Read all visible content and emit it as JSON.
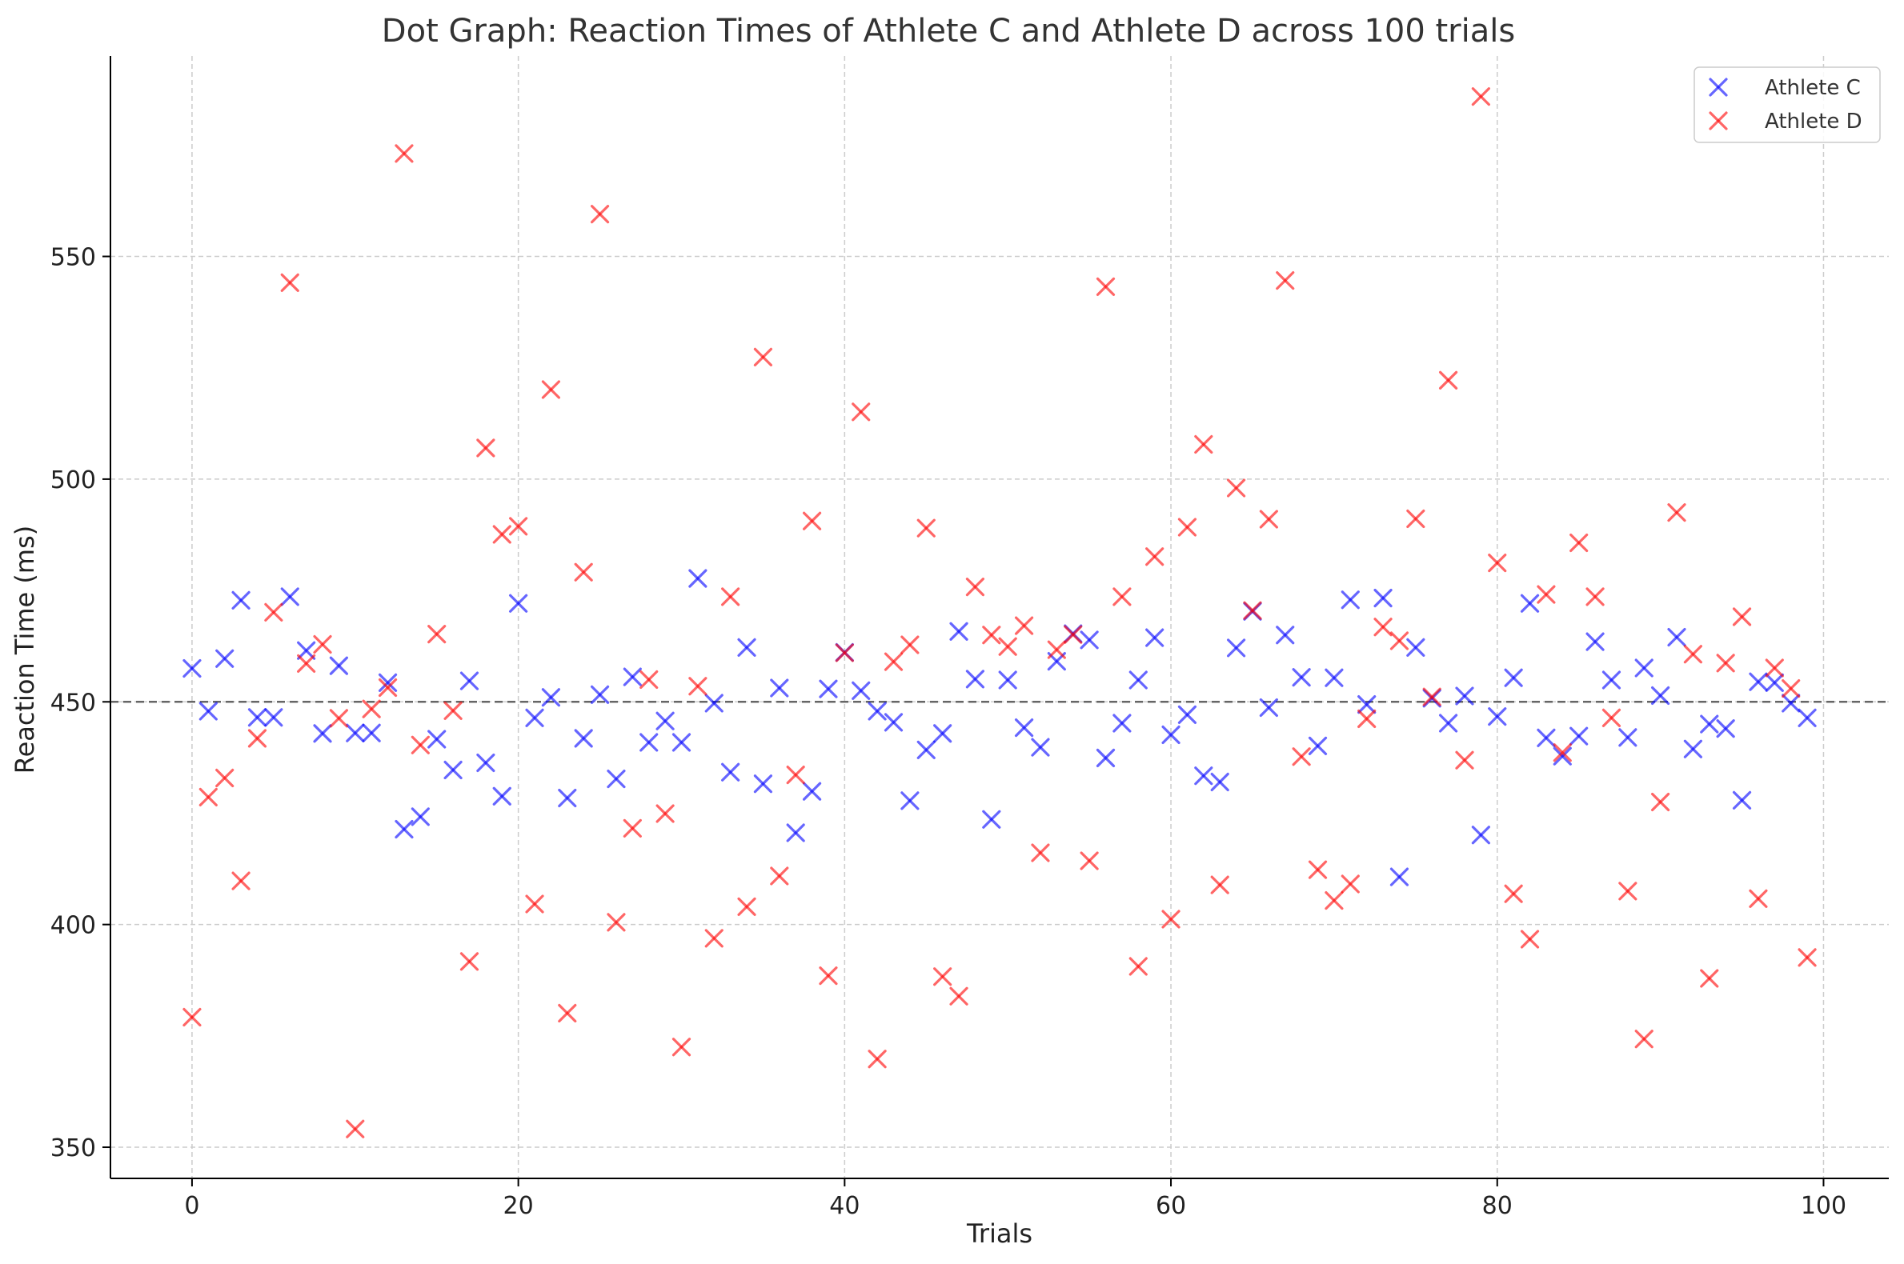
{
  "chart_data": {
    "type": "scatter",
    "title": "Dot Graph: Reaction Times of Athlete C and Athlete D across 100 trials",
    "xlabel": "Trials",
    "ylabel": "Reaction Time (ms)",
    "xlim": [
      -5,
      104
    ],
    "ylim": [
      343,
      595
    ],
    "xticks": [
      0,
      20,
      40,
      60,
      80,
      100
    ],
    "yticks": [
      350,
      400,
      450,
      500,
      550
    ],
    "grid": true,
    "legend_position": "top-right",
    "marker": "x",
    "reference_line": {
      "y": 450,
      "style": "dashed",
      "color": "#666666"
    },
    "series": [
      {
        "name": "Athlete C",
        "color": "#0000ff",
        "x": [
          0,
          1,
          2,
          3,
          4,
          5,
          6,
          7,
          8,
          9,
          10,
          11,
          12,
          13,
          14,
          15,
          16,
          17,
          18,
          19,
          20,
          21,
          22,
          23,
          24,
          25,
          26,
          27,
          28,
          29,
          30,
          31,
          32,
          33,
          34,
          35,
          36,
          37,
          38,
          39,
          40,
          41,
          42,
          43,
          44,
          45,
          46,
          47,
          48,
          49,
          50,
          51,
          52,
          53,
          54,
          55,
          56,
          57,
          58,
          59,
          60,
          61,
          62,
          63,
          64,
          65,
          66,
          67,
          68,
          69,
          70,
          71,
          72,
          73,
          74,
          75,
          76,
          77,
          78,
          79,
          80,
          81,
          82,
          83,
          84,
          85,
          86,
          87,
          88,
          89,
          90,
          91,
          92,
          93,
          94,
          95,
          96,
          97,
          98,
          99
        ],
        "y": [
          457.5,
          447.9,
          459.7,
          472.8,
          446.5,
          446.5,
          473.6,
          461.5,
          442.9,
          458.1,
          443.0,
          443.0,
          454.3,
          421.4,
          424.2,
          441.6,
          434.7,
          454.7,
          436.3,
          428.8,
          472.1,
          446.4,
          451.0,
          428.4,
          441.8,
          451.6,
          432.7,
          455.6,
          440.9,
          445.7,
          440.9,
          477.7,
          449.7,
          434.2,
          462.2,
          431.6,
          453.1,
          420.6,
          429.9,
          452.9,
          461.1,
          452.5,
          447.9,
          445.4,
          427.8,
          439.2,
          442.9,
          465.8,
          455.1,
          423.6,
          454.9,
          444.2,
          439.8,
          459.1,
          465.3,
          463.9,
          437.4,
          445.2,
          454.9,
          464.4,
          442.6,
          447.1,
          433.4,
          432.0,
          462.1,
          470.3,
          448.7,
          465.0,
          455.5,
          440.1,
          455.4,
          472.9,
          449.4,
          473.3,
          410.7,
          462.2,
          450.8,
          445.2,
          451.3,
          420.1,
          446.7,
          455.4,
          472.1,
          441.9,
          437.8,
          442.3,
          463.5,
          454.9,
          442.0,
          457.6,
          451.4,
          464.5,
          439.4,
          445.0,
          444.0,
          427.9,
          454.5,
          454.3,
          449.7,
          446.4
        ]
      },
      {
        "name": "Athlete D",
        "color": "#ff0000",
        "x": [
          0,
          1,
          2,
          3,
          4,
          5,
          6,
          7,
          8,
          9,
          10,
          11,
          12,
          13,
          14,
          15,
          16,
          17,
          18,
          19,
          20,
          21,
          22,
          23,
          24,
          25,
          26,
          27,
          28,
          29,
          30,
          31,
          32,
          33,
          34,
          35,
          36,
          37,
          38,
          39,
          40,
          41,
          42,
          43,
          44,
          45,
          46,
          47,
          48,
          49,
          50,
          51,
          52,
          53,
          54,
          55,
          56,
          57,
          58,
          59,
          60,
          61,
          62,
          63,
          64,
          65,
          66,
          67,
          68,
          69,
          70,
          71,
          72,
          73,
          74,
          75,
          76,
          77,
          78,
          79,
          80,
          81,
          82,
          83,
          84,
          85,
          86,
          87,
          88,
          89,
          90,
          91,
          92,
          93,
          94,
          95,
          96,
          97,
          98,
          99
        ],
        "y": [
          379.2,
          428.6,
          432.9,
          409.8,
          441.8,
          470.1,
          544.1,
          458.6,
          462.9,
          446.3,
          354.1,
          448.4,
          453.2,
          573.1,
          440.3,
          465.2,
          448.0,
          391.7,
          507.0,
          487.6,
          489.4,
          404.6,
          520.1,
          380.1,
          479.1,
          559.5,
          400.5,
          421.6,
          455.0,
          424.9,
          372.5,
          453.5,
          396.9,
          473.6,
          404.0,
          527.4,
          410.9,
          433.6,
          490.6,
          388.5,
          461.0,
          515.1,
          369.8,
          459.0,
          462.8,
          489.0,
          388.3,
          383.9,
          475.8,
          465.0,
          462.4,
          467.1,
          416.1,
          461.7,
          465.1,
          414.3,
          543.2,
          473.6,
          390.6,
          482.6,
          401.2,
          489.2,
          507.8,
          408.9,
          498.0,
          470.5,
          491.0,
          544.6,
          437.7,
          412.3,
          405.4,
          409.1,
          446.2,
          466.8,
          463.7,
          491.1,
          451.1,
          522.2,
          436.9,
          585.9,
          481.2,
          406.9,
          396.7,
          474.1,
          438.6,
          485.7,
          473.6,
          446.4,
          407.5,
          374.3,
          427.5,
          492.5,
          460.7,
          387.9,
          458.7,
          469.1,
          405.8,
          457.6,
          453.0,
          392.6
        ]
      }
    ]
  }
}
